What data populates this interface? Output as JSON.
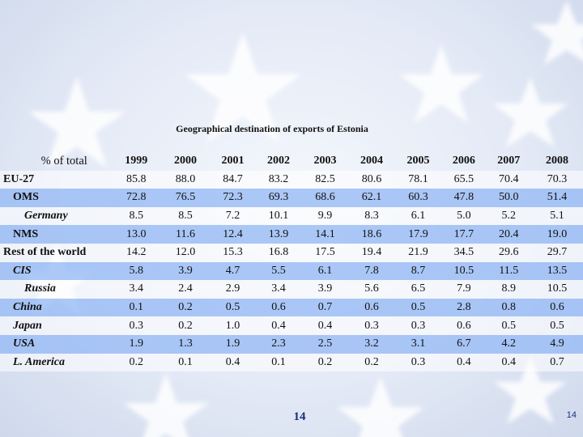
{
  "slide": {
    "title": "Geographical destination of exports of Estonia",
    "page_number": "14",
    "corner_page_number": "14"
  },
  "colors": {
    "highlight_row": "#96baf5",
    "background": "#dfe6f3",
    "star": "#ffffff"
  },
  "table": {
    "corner_label": "% of total",
    "years": [
      "1999",
      "2000",
      "2001",
      "2002",
      "2003",
      "2004",
      "2005",
      "2006",
      "2007",
      "2008"
    ],
    "rows": [
      {
        "label": "EU-27",
        "values": [
          "85.8",
          "88.0",
          "84.7",
          "83.2",
          "82.5",
          "80.6",
          "78.1",
          "65.5",
          "70.4",
          "70.3"
        ]
      },
      {
        "label": "OMS",
        "values": [
          "72.8",
          "76.5",
          "72.3",
          "69.3",
          "68.6",
          "62.1",
          "60.3",
          "47.8",
          "50.0",
          "51.4"
        ]
      },
      {
        "label": "Germany",
        "values": [
          "8.5",
          "8.5",
          "7.2",
          "10.1",
          "9.9",
          "8.3",
          "6.1",
          "5.0",
          "5.2",
          "5.1"
        ]
      },
      {
        "label": "NMS",
        "values": [
          "13.0",
          "11.6",
          "12.4",
          "13.9",
          "14.1",
          "18.6",
          "17.9",
          "17.7",
          "20.4",
          "19.0"
        ]
      },
      {
        "label": "Rest of the world",
        "values": [
          "14.2",
          "12.0",
          "15.3",
          "16.8",
          "17.5",
          "19.4",
          "21.9",
          "34.5",
          "29.6",
          "29.7"
        ]
      },
      {
        "label": "CIS",
        "values": [
          "5.8",
          "3.9",
          "4.7",
          "5.5",
          "6.1",
          "7.8",
          "8.7",
          "10.5",
          "11.5",
          "13.5"
        ]
      },
      {
        "label": "Russia",
        "values": [
          "3.4",
          "2.4",
          "2.9",
          "3.4",
          "3.9",
          "5.6",
          "6.5",
          "7.9",
          "8.9",
          "10.5"
        ]
      },
      {
        "label": "China",
        "values": [
          "0.1",
          "0.2",
          "0.5",
          "0.6",
          "0.7",
          "0.6",
          "0.5",
          "2.8",
          "0.8",
          "0.6"
        ]
      },
      {
        "label": "Japan",
        "values": [
          "0.3",
          "0.2",
          "1.0",
          "0.4",
          "0.4",
          "0.3",
          "0.3",
          "0.6",
          "0.5",
          "0.5"
        ]
      },
      {
        "label": "USA",
        "values": [
          "1.9",
          "1.3",
          "1.9",
          "2.3",
          "2.5",
          "3.2",
          "3.1",
          "6.7",
          "4.2",
          "4.9"
        ]
      },
      {
        "label": "L. America",
        "values": [
          "0.2",
          "0.1",
          "0.4",
          "0.1",
          "0.2",
          "0.2",
          "0.3",
          "0.4",
          "0.4",
          "0.7"
        ]
      }
    ]
  }
}
